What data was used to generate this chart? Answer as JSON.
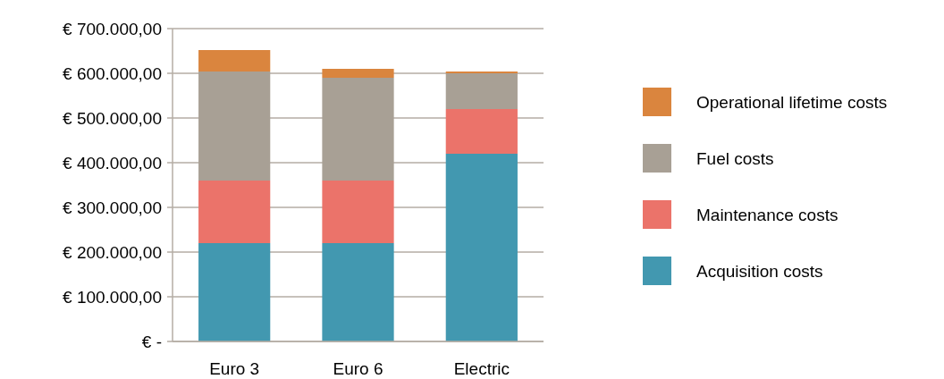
{
  "chart_data": {
    "type": "bar",
    "stacked": true,
    "categories": [
      "Euro 3",
      "Euro 6",
      "Electric"
    ],
    "series": [
      {
        "name": "Acquisition costs",
        "color": "#4298b0",
        "values": [
          220000,
          220000,
          420000
        ]
      },
      {
        "name": "Maintenance costs",
        "color": "#eb736a",
        "values": [
          140000,
          140000,
          100000
        ]
      },
      {
        "name": "Fuel costs",
        "color": "#a8a095",
        "values": [
          244000,
          230000,
          80000
        ]
      },
      {
        "name": "Operational lifetime costs",
        "color": "#da853e",
        "values": [
          48000,
          20000,
          4000
        ]
      }
    ],
    "ylim": [
      0,
      700000
    ],
    "yticks": [
      {
        "value": 0,
        "label": "€ -"
      },
      {
        "value": 100000,
        "label": "€ 100.000,00"
      },
      {
        "value": 200000,
        "label": "€ 200.000,00"
      },
      {
        "value": 300000,
        "label": "€ 300.000,00"
      },
      {
        "value": 400000,
        "label": "€ 400.000,00"
      },
      {
        "value": 500000,
        "label": "€ 500.000,00"
      },
      {
        "value": 600000,
        "label": "€ 600.000,00"
      },
      {
        "value": 700000,
        "label": "€ 700.000,00"
      }
    ],
    "grid": "y",
    "legend": "right"
  }
}
